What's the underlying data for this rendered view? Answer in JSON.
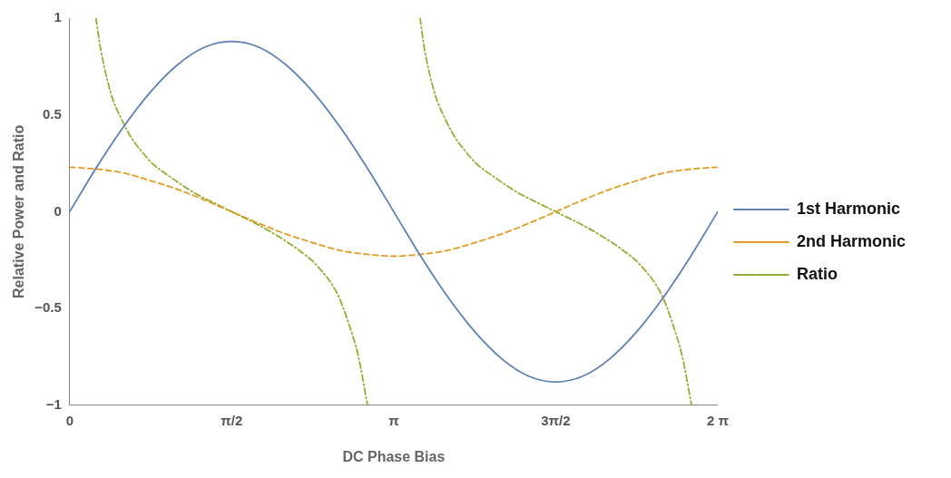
{
  "chart_data": {
    "type": "line",
    "xlabel": "DC Phase Bias",
    "ylabel": "Relative Power and Ratio",
    "x": [
      0,
      0.2618,
      0.5236,
      0.7854,
      1.0472,
      1.309,
      1.5708,
      1.8326,
      2.0944,
      2.3562,
      2.618,
      2.8798,
      3.1416,
      3.4034,
      3.6652,
      3.927,
      4.1888,
      4.4506,
      4.7124,
      4.9742,
      5.236,
      5.4978,
      5.7596,
      6.0214,
      6.2832
    ],
    "series": [
      {
        "name": "1st Harmonic",
        "color": "#5e81b5",
        "line_style": "solid",
        "values": [
          0,
          0.23,
          0.44,
          0.62,
          0.76,
          0.85,
          0.88,
          0.85,
          0.76,
          0.62,
          0.44,
          0.23,
          0,
          -0.23,
          -0.44,
          -0.62,
          -0.76,
          -0.85,
          -0.88,
          -0.85,
          -0.76,
          -0.62,
          -0.44,
          -0.23,
          0
        ]
      },
      {
        "name": "2nd Harmonic",
        "color": "#e19c24",
        "line_style": "dashed",
        "values": [
          0.23,
          0.22,
          0.2,
          0.16,
          0.115,
          0.06,
          0,
          -0.06,
          -0.115,
          -0.16,
          -0.2,
          -0.22,
          -0.23,
          -0.22,
          -0.2,
          -0.16,
          -0.115,
          -0.06,
          0,
          0.06,
          0.115,
          0.16,
          0.2,
          0.22,
          0.23
        ]
      },
      {
        "name": "Ratio",
        "color": "#8fb032",
        "line_style": "dotted",
        "x": [
          0.255,
          0.3,
          0.4,
          0.5,
          0.6,
          0.7,
          0.8,
          1.0,
          1.2,
          1.4,
          1.5708,
          1.8,
          2.0,
          2.2,
          2.4,
          2.6,
          2.7,
          2.8,
          2.887,
          3.1416,
          3.397,
          3.44,
          3.54,
          3.64,
          3.74,
          3.84,
          3.94,
          4.14,
          4.34,
          4.54,
          4.7124,
          4.94,
          5.14,
          5.34,
          5.54,
          5.74,
          5.84,
          5.94,
          6.029
        ],
        "values": [
          1.0,
          0.84,
          0.61,
          0.48,
          0.38,
          0.31,
          0.25,
          0.17,
          0.1,
          0.045,
          0,
          -0.06,
          -0.12,
          -0.19,
          -0.28,
          -0.43,
          -0.57,
          -0.75,
          -1.0,
          null,
          1.0,
          0.84,
          0.61,
          0.48,
          0.38,
          0.31,
          0.25,
          0.17,
          0.1,
          0.045,
          0,
          -0.06,
          -0.12,
          -0.19,
          -0.28,
          -0.43,
          -0.57,
          -0.75,
          -1.0
        ]
      }
    ],
    "xlim": [
      0,
      6.2832
    ],
    "xticks": [
      0,
      {
        "value": 1.5708,
        "label": "π/2"
      },
      {
        "value": 3.1416,
        "label": "π"
      },
      {
        "value": 4.7124,
        "label": "3π/2"
      },
      {
        "value": 6.2832,
        "label": "2 π"
      }
    ],
    "ylim": [
      -1,
      1
    ],
    "yticks": [
      {
        "value": -1,
        "label": "−1"
      },
      {
        "value": -0.5,
        "label": "−0.5"
      },
      0,
      0.5,
      1
    ],
    "grid": false,
    "legend": "right",
    "marker": "none"
  }
}
